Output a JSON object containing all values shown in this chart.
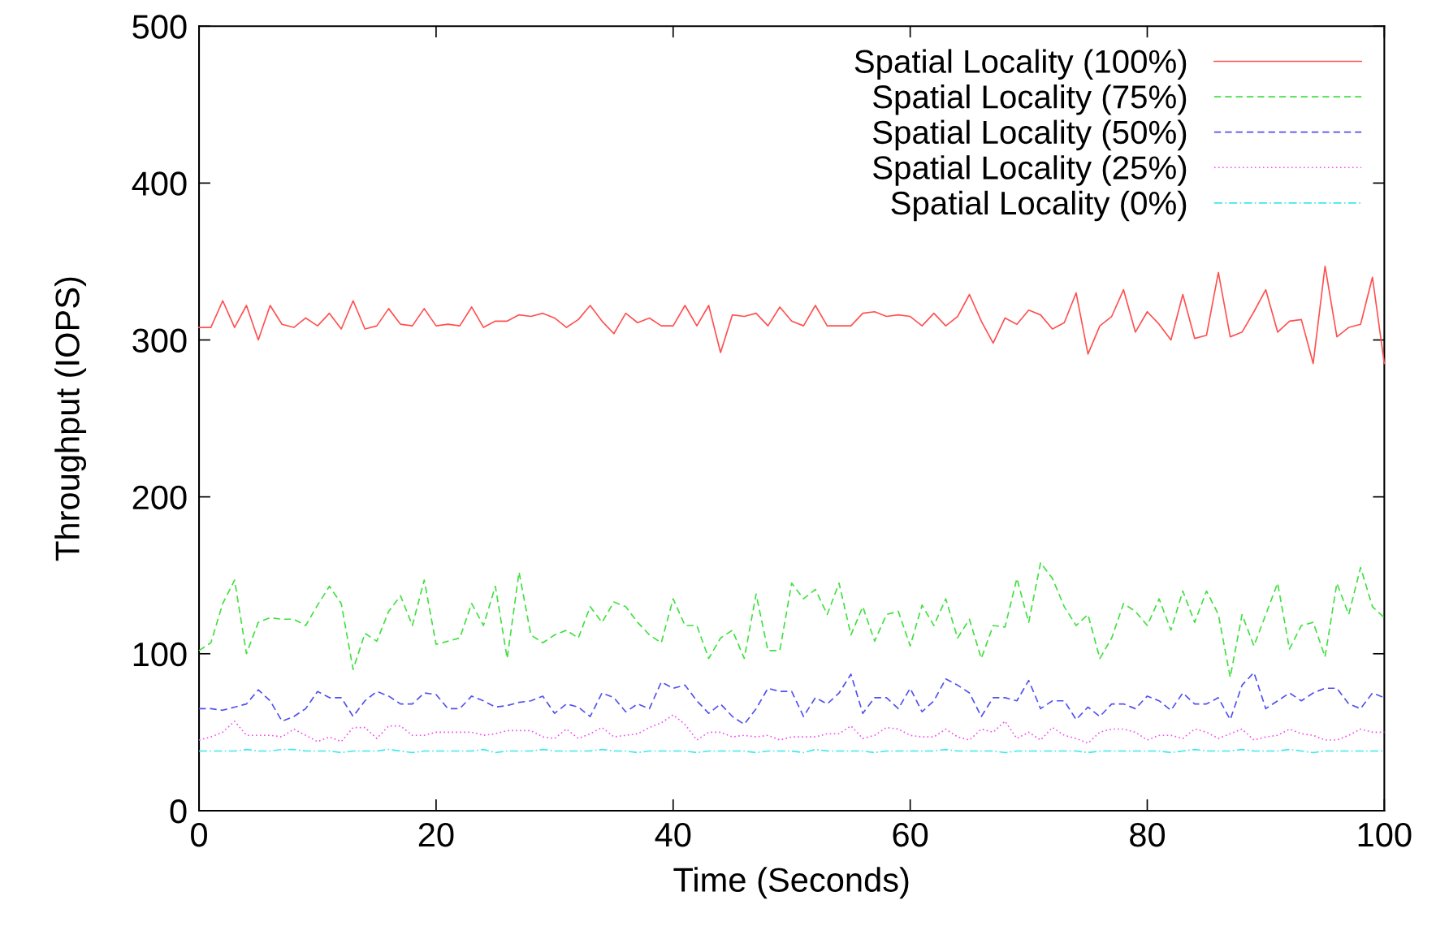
{
  "chart_data": {
    "type": "line",
    "xlabel": "Time (Seconds)",
    "ylabel": "Throughput (IOPS)",
    "xlim": [
      0,
      100
    ],
    "xticks": [
      0,
      20,
      40,
      60,
      80,
      100
    ],
    "ylim": [
      0,
      500
    ],
    "yticks": [
      0,
      100,
      200,
      300,
      400,
      500
    ],
    "grid": false,
    "x": [
      0,
      1,
      2,
      3,
      4,
      5,
      6,
      7,
      8,
      9,
      10,
      11,
      12,
      13,
      14,
      15,
      16,
      17,
      18,
      19,
      20,
      21,
      22,
      23,
      24,
      25,
      26,
      27,
      28,
      29,
      30,
      31,
      32,
      33,
      34,
      35,
      36,
      37,
      38,
      39,
      40,
      41,
      42,
      43,
      44,
      45,
      46,
      47,
      48,
      49,
      50,
      51,
      52,
      53,
      54,
      55,
      56,
      57,
      58,
      59,
      60,
      61,
      62,
      63,
      64,
      65,
      66,
      67,
      68,
      69,
      70,
      71,
      72,
      73,
      74,
      75,
      76,
      77,
      78,
      79,
      80,
      81,
      82,
      83,
      84,
      85,
      86,
      87,
      88,
      89,
      90,
      91,
      92,
      93,
      94,
      95,
      96,
      97,
      98,
      99,
      100
    ],
    "legend": "top right",
    "marker": "none",
    "series": [
      {
        "name": "Spatial Locality (100%)",
        "color": "#ff5050",
        "line_style": "solid",
        "values": [
          308,
          308,
          325,
          308,
          322,
          300,
          322,
          310,
          308,
          314,
          309,
          317,
          307,
          325,
          307,
          309,
          320,
          310,
          309,
          320,
          309,
          310,
          309,
          321,
          308,
          312,
          312,
          316,
          315,
          317,
          314,
          308,
          313,
          322,
          312,
          304,
          317,
          311,
          314,
          309,
          309,
          322,
          309,
          322,
          292,
          316,
          315,
          317,
          309,
          321,
          312,
          309,
          322,
          309,
          309,
          309,
          317,
          318,
          315,
          316,
          315,
          309,
          317,
          309,
          315,
          329,
          312,
          298,
          314,
          310,
          319,
          316,
          307,
          311,
          330,
          291,
          309,
          315,
          332,
          305,
          318,
          310,
          300,
          329,
          301,
          303,
          343,
          302,
          305,
          318,
          332,
          305,
          312,
          313,
          285,
          347,
          302,
          308,
          310,
          340,
          285
        ]
      },
      {
        "name": "Spatial Locality (75%)",
        "color": "#40e040",
        "line_style": "dashed",
        "values": [
          102,
          107,
          132,
          147,
          100,
          120,
          123,
          122,
          122,
          118,
          131,
          143,
          132,
          90,
          113,
          108,
          127,
          137,
          118,
          147,
          106,
          108,
          110,
          132,
          118,
          143,
          97,
          152,
          112,
          107,
          112,
          115,
          110,
          130,
          120,
          133,
          130,
          120,
          112,
          107,
          135,
          118,
          118,
          97,
          110,
          115,
          97,
          138,
          102,
          102,
          145,
          135,
          141,
          125,
          145,
          112,
          130,
          108,
          125,
          127,
          105,
          131,
          118,
          135,
          110,
          122,
          97,
          118,
          117,
          148,
          120,
          158,
          148,
          130,
          118,
          125,
          97,
          110,
          132,
          127,
          118,
          135,
          115,
          140,
          120,
          140,
          125,
          85,
          125,
          105,
          125,
          145,
          103,
          118,
          120,
          98,
          145,
          125,
          155,
          130,
          123
        ]
      },
      {
        "name": "Spatial Locality (50%)",
        "color": "#5050f0",
        "line_style": "dashed",
        "values": [
          65,
          65,
          64,
          66,
          68,
          77,
          70,
          57,
          60,
          65,
          76,
          72,
          72,
          60,
          70,
          76,
          73,
          68,
          68,
          75,
          74,
          65,
          65,
          73,
          70,
          66,
          67,
          69,
          70,
          73,
          62,
          68,
          66,
          60,
          75,
          72,
          63,
          68,
          65,
          82,
          78,
          80,
          70,
          62,
          68,
          60,
          55,
          65,
          78,
          76,
          76,
          60,
          72,
          68,
          75,
          87,
          62,
          72,
          72,
          65,
          78,
          63,
          70,
          84,
          80,
          75,
          60,
          72,
          72,
          70,
          83,
          65,
          70,
          70,
          58,
          66,
          60,
          68,
          68,
          65,
          73,
          70,
          64,
          75,
          68,
          68,
          72,
          58,
          80,
          88,
          65,
          70,
          75,
          70,
          75,
          78,
          78,
          68,
          65,
          75,
          72
        ]
      },
      {
        "name": "Spatial Locality (25%)",
        "color": "#f050f0",
        "line_style": "dotted",
        "values": [
          45,
          47,
          50,
          57,
          48,
          48,
          48,
          47,
          52,
          48,
          44,
          47,
          44,
          53,
          53,
          46,
          54,
          54,
          48,
          48,
          50,
          50,
          50,
          50,
          48,
          49,
          51,
          51,
          51,
          47,
          46,
          52,
          46,
          49,
          53,
          47,
          48,
          49,
          53,
          56,
          61,
          55,
          45,
          50,
          50,
          47,
          48,
          47,
          48,
          45,
          47,
          47,
          47,
          49,
          49,
          54,
          46,
          48,
          53,
          52,
          48,
          47,
          47,
          52,
          47,
          45,
          52,
          50,
          57,
          46,
          50,
          45,
          53,
          48,
          46,
          43,
          50,
          52,
          52,
          50,
          45,
          48,
          48,
          46,
          52,
          50,
          46,
          49,
          52,
          45,
          47,
          48,
          52,
          49,
          48,
          45,
          45,
          48,
          52,
          50,
          50
        ]
      },
      {
        "name": "Spatial Locality (0%)",
        "color": "#40e8e8",
        "line_style": "dashdot",
        "values": [
          38,
          38,
          38,
          38,
          39,
          38,
          38,
          39,
          39,
          38,
          38,
          38,
          37,
          38,
          38,
          38,
          39,
          38,
          37,
          38,
          38,
          38,
          38,
          38,
          39,
          37,
          38,
          38,
          38,
          39,
          38,
          38,
          38,
          38,
          39,
          38,
          38,
          37,
          38,
          38,
          38,
          38,
          37,
          38,
          38,
          38,
          38,
          37,
          38,
          38,
          38,
          37,
          39,
          38,
          38,
          38,
          38,
          37,
          38,
          38,
          38,
          38,
          38,
          39,
          38,
          38,
          38,
          38,
          37,
          38,
          38,
          38,
          38,
          38,
          38,
          37,
          38,
          38,
          38,
          38,
          38,
          38,
          37,
          38,
          39,
          38,
          38,
          38,
          39,
          38,
          38,
          38,
          39,
          38,
          37,
          38,
          38,
          38,
          38,
          38,
          38
        ]
      }
    ]
  }
}
